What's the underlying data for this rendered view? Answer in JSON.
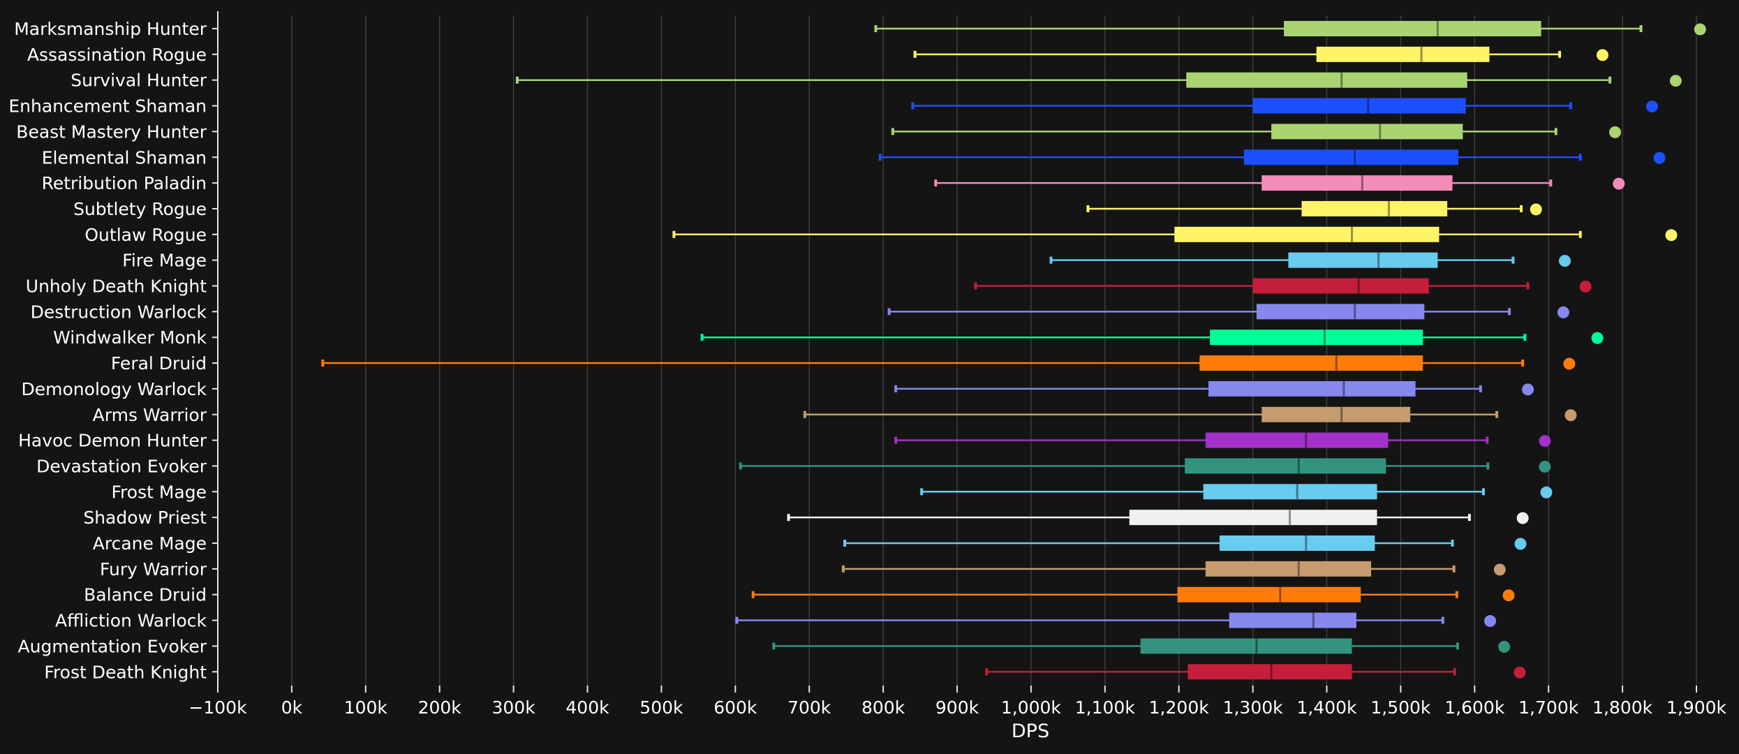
{
  "chart_data": {
    "type": "box",
    "orientation": "horizontal",
    "title": "",
    "xlabel": "DPS",
    "ylabel": "",
    "xlim": [
      -100000,
      1900000
    ],
    "xticks": [
      -100000,
      0,
      100000,
      200000,
      300000,
      400000,
      500000,
      600000,
      700000,
      800000,
      900000,
      1000000,
      1100000,
      1200000,
      1300000,
      1400000,
      1500000,
      1600000,
      1700000,
      1800000,
      1900000
    ],
    "xtick_labels": [
      "−100k",
      "0k",
      "100k",
      "200k",
      "300k",
      "400k",
      "500k",
      "600k",
      "700k",
      "800k",
      "900k",
      "1,000k",
      "1,100k",
      "1,200k",
      "1,300k",
      "1,400k",
      "1,500k",
      "1,600k",
      "1,700k",
      "1,800k",
      "1,900k"
    ],
    "grid": true,
    "series": [
      {
        "name": "Marksmanship Hunter",
        "color": "#aad372",
        "min": 790000,
        "q1": 1342000,
        "median": 1550000,
        "q3": 1690000,
        "max": 1825000,
        "outlier": 1905000
      },
      {
        "name": "Assassination Rogue",
        "color": "#fff468",
        "min": 843000,
        "q1": 1386000,
        "median": 1528000,
        "q3": 1620000,
        "max": 1715000,
        "outlier": 1773000
      },
      {
        "name": "Survival Hunter",
        "color": "#aad372",
        "min": 305000,
        "q1": 1210000,
        "median": 1420000,
        "q3": 1590000,
        "max": 1783000,
        "outlier": 1872000
      },
      {
        "name": "Enhancement Shaman",
        "color": "#1e4fff",
        "min": 840000,
        "q1": 1300000,
        "median": 1456000,
        "q3": 1588000,
        "max": 1730000,
        "outlier": 1840000
      },
      {
        "name": "Beast Mastery Hunter",
        "color": "#aad372",
        "min": 813000,
        "q1": 1325000,
        "median": 1472000,
        "q3": 1584000,
        "max": 1710000,
        "outlier": 1790000
      },
      {
        "name": "Elemental Shaman",
        "color": "#1e4fff",
        "min": 796000,
        "q1": 1288000,
        "median": 1438000,
        "q3": 1578000,
        "max": 1743000,
        "outlier": 1850000
      },
      {
        "name": "Retribution Paladin",
        "color": "#f48cba",
        "min": 871000,
        "q1": 1312000,
        "median": 1448000,
        "q3": 1570000,
        "max": 1703000,
        "outlier": 1795000
      },
      {
        "name": "Subtlety Rogue",
        "color": "#fff468",
        "min": 1077000,
        "q1": 1366000,
        "median": 1484000,
        "q3": 1563000,
        "max": 1663000,
        "outlier": 1683000
      },
      {
        "name": "Outlaw Rogue",
        "color": "#fff468",
        "min": 517000,
        "q1": 1194000,
        "median": 1434000,
        "q3": 1552000,
        "max": 1743000,
        "outlier": 1866000
      },
      {
        "name": "Fire Mage",
        "color": "#68ccef",
        "min": 1027000,
        "q1": 1348000,
        "median": 1470000,
        "q3": 1550000,
        "max": 1652000,
        "outlier": 1722000
      },
      {
        "name": "Unholy Death Knight",
        "color": "#c41e3a",
        "min": 925000,
        "q1": 1300000,
        "median": 1443000,
        "q3": 1538000,
        "max": 1672000,
        "outlier": 1750000
      },
      {
        "name": "Destruction Warlock",
        "color": "#8788ee",
        "min": 808000,
        "q1": 1305000,
        "median": 1438000,
        "q3": 1532000,
        "max": 1647000,
        "outlier": 1720000
      },
      {
        "name": "Windwalker Monk",
        "color": "#00ff98",
        "min": 555000,
        "q1": 1242000,
        "median": 1397000,
        "q3": 1530000,
        "max": 1668000,
        "outlier": 1766000
      },
      {
        "name": "Feral Druid",
        "color": "#ff7c0a",
        "min": 42000,
        "q1": 1228000,
        "median": 1413000,
        "q3": 1530000,
        "max": 1665000,
        "outlier": 1728000
      },
      {
        "name": "Demonology Warlock",
        "color": "#8788ee",
        "min": 817000,
        "q1": 1240000,
        "median": 1423000,
        "q3": 1520000,
        "max": 1608000,
        "outlier": 1672000
      },
      {
        "name": "Arms Warrior",
        "color": "#c69b6d",
        "min": 694000,
        "q1": 1312000,
        "median": 1420000,
        "q3": 1513000,
        "max": 1630000,
        "outlier": 1730000
      },
      {
        "name": "Havoc Demon Hunter",
        "color": "#a330c9",
        "min": 817000,
        "q1": 1236000,
        "median": 1372000,
        "q3": 1483000,
        "max": 1617000,
        "outlier": 1695000
      },
      {
        "name": "Devastation Evoker",
        "color": "#33937f",
        "min": 607000,
        "q1": 1208000,
        "median": 1362000,
        "q3": 1480000,
        "max": 1618000,
        "outlier": 1695000
      },
      {
        "name": "Frost Mage",
        "color": "#68ccef",
        "min": 852000,
        "q1": 1233000,
        "median": 1360000,
        "q3": 1468000,
        "max": 1612000,
        "outlier": 1697000
      },
      {
        "name": "Shadow Priest",
        "color": "#f0f0f0",
        "min": 672000,
        "q1": 1133000,
        "median": 1350000,
        "q3": 1468000,
        "max": 1593000,
        "outlier": 1665000
      },
      {
        "name": "Arcane Mage",
        "color": "#68ccef",
        "min": 748000,
        "q1": 1255000,
        "median": 1372000,
        "q3": 1465000,
        "max": 1570000,
        "outlier": 1662000
      },
      {
        "name": "Fury Warrior",
        "color": "#c69b6d",
        "min": 746000,
        "q1": 1236000,
        "median": 1362000,
        "q3": 1460000,
        "max": 1572000,
        "outlier": 1634000
      },
      {
        "name": "Balance Druid",
        "color": "#ff7c0a",
        "min": 624000,
        "q1": 1198000,
        "median": 1337000,
        "q3": 1446000,
        "max": 1576000,
        "outlier": 1646000
      },
      {
        "name": "Affliction Warlock",
        "color": "#8788ee",
        "min": 602000,
        "q1": 1268000,
        "median": 1382000,
        "q3": 1440000,
        "max": 1557000,
        "outlier": 1621000
      },
      {
        "name": "Augmentation Evoker",
        "color": "#33937f",
        "min": 652000,
        "q1": 1148000,
        "median": 1305000,
        "q3": 1434000,
        "max": 1577000,
        "outlier": 1640000
      },
      {
        "name": "Frost Death Knight",
        "color": "#c41e3a",
        "min": 940000,
        "q1": 1212000,
        "median": 1325000,
        "q3": 1434000,
        "max": 1573000,
        "outlier": 1661000
      }
    ]
  },
  "style": {
    "background": "#141414",
    "grid_color": "#3c3c3c",
    "axis_color": "#e6e6e6",
    "text_color": "#ffffff"
  }
}
